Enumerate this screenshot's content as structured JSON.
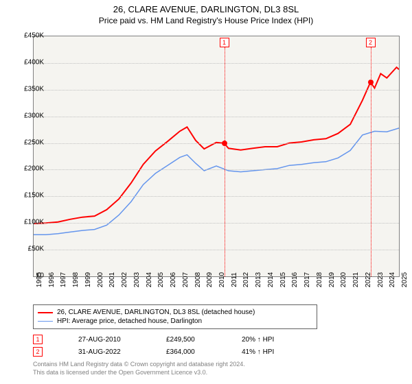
{
  "title_line1": "26, CLARE AVENUE, DARLINGTON, DL3 8SL",
  "title_line2": "Price paid vs. HM Land Registry's House Price Index (HPI)",
  "chart": {
    "type": "line",
    "plot_background_color": "#f5f4f0",
    "grid_color": "#c0c0c0",
    "border_color": "#808080",
    "ylim": [
      0,
      450000
    ],
    "ytick_step": 50000,
    "yticks": [
      "£0",
      "£50K",
      "£100K",
      "£150K",
      "£200K",
      "£250K",
      "£300K",
      "£350K",
      "£400K",
      "£450K"
    ],
    "xlim": [
      1995,
      2025
    ],
    "xticks": [
      1995,
      1996,
      1997,
      1998,
      1999,
      2000,
      2001,
      2002,
      2003,
      2004,
      2005,
      2006,
      2007,
      2008,
      2009,
      2010,
      2011,
      2012,
      2013,
      2014,
      2015,
      2016,
      2017,
      2018,
      2019,
      2020,
      2021,
      2022,
      2023,
      2024,
      2025
    ],
    "series": [
      {
        "name": "26, CLARE AVENUE, DARLINGTON, DL3 8SL (detached house)",
        "color": "#ff0000",
        "width": 2,
        "data": [
          [
            1995,
            99000
          ],
          [
            1996,
            100000
          ],
          [
            1997,
            102000
          ],
          [
            1998,
            107000
          ],
          [
            1999,
            111000
          ],
          [
            2000,
            113000
          ],
          [
            2001,
            125000
          ],
          [
            2002,
            145000
          ],
          [
            2003,
            175000
          ],
          [
            2004,
            210000
          ],
          [
            2005,
            235000
          ],
          [
            2006,
            253000
          ],
          [
            2007,
            272000
          ],
          [
            2007.6,
            280000
          ],
          [
            2008.3,
            255000
          ],
          [
            2009,
            239000
          ],
          [
            2010,
            251000
          ],
          [
            2010.65,
            249500
          ],
          [
            2011,
            240000
          ],
          [
            2012,
            237000
          ],
          [
            2013,
            240000
          ],
          [
            2014,
            243000
          ],
          [
            2015,
            243000
          ],
          [
            2016,
            250000
          ],
          [
            2017,
            252000
          ],
          [
            2018,
            256000
          ],
          [
            2019,
            258000
          ],
          [
            2020,
            268000
          ],
          [
            2021,
            285000
          ],
          [
            2022,
            330000
          ],
          [
            2022.66,
            364000
          ],
          [
            2023,
            353000
          ],
          [
            2023.5,
            380000
          ],
          [
            2024,
            372000
          ],
          [
            2024.8,
            392000
          ],
          [
            2025,
            388000
          ]
        ]
      },
      {
        "name": "HPI: Average price, detached house, Darlington",
        "color": "#6495ed",
        "width": 1.5,
        "data": [
          [
            1995,
            78000
          ],
          [
            1996,
            78000
          ],
          [
            1997,
            80000
          ],
          [
            1998,
            83000
          ],
          [
            1999,
            86000
          ],
          [
            2000,
            88000
          ],
          [
            2001,
            96000
          ],
          [
            2002,
            115000
          ],
          [
            2003,
            140000
          ],
          [
            2004,
            172000
          ],
          [
            2005,
            193000
          ],
          [
            2006,
            208000
          ],
          [
            2007,
            223000
          ],
          [
            2007.6,
            228000
          ],
          [
            2008.3,
            212000
          ],
          [
            2009,
            198000
          ],
          [
            2010,
            207000
          ],
          [
            2011,
            198000
          ],
          [
            2012,
            196000
          ],
          [
            2013,
            198000
          ],
          [
            2014,
            200000
          ],
          [
            2015,
            202000
          ],
          [
            2016,
            208000
          ],
          [
            2017,
            210000
          ],
          [
            2018,
            213000
          ],
          [
            2019,
            215000
          ],
          [
            2020,
            222000
          ],
          [
            2021,
            236000
          ],
          [
            2022,
            265000
          ],
          [
            2023,
            272000
          ],
          [
            2024,
            271000
          ],
          [
            2025,
            278000
          ]
        ]
      }
    ],
    "sale_markers": [
      {
        "label": "1",
        "x": 2010.65,
        "y": 249500
      },
      {
        "label": "2",
        "x": 2022.66,
        "y": 364000
      }
    ]
  },
  "legend": {
    "rows": [
      {
        "color": "#ff0000",
        "width": 2,
        "text": "26, CLARE AVENUE, DARLINGTON, DL3 8SL (detached house)"
      },
      {
        "color": "#6495ed",
        "width": 1.5,
        "text": "HPI: Average price, detached house, Darlington"
      }
    ]
  },
  "sales_table": [
    {
      "marker": "1",
      "date": "27-AUG-2010",
      "price": "£249,500",
      "delta": "20% ↑ HPI"
    },
    {
      "marker": "2",
      "date": "31-AUG-2022",
      "price": "£364,000",
      "delta": "41% ↑ HPI"
    }
  ],
  "footer_line1": "Contains HM Land Registry data © Crown copyright and database right 2024.",
  "footer_line2": "This data is licensed under the Open Government Licence v3.0."
}
